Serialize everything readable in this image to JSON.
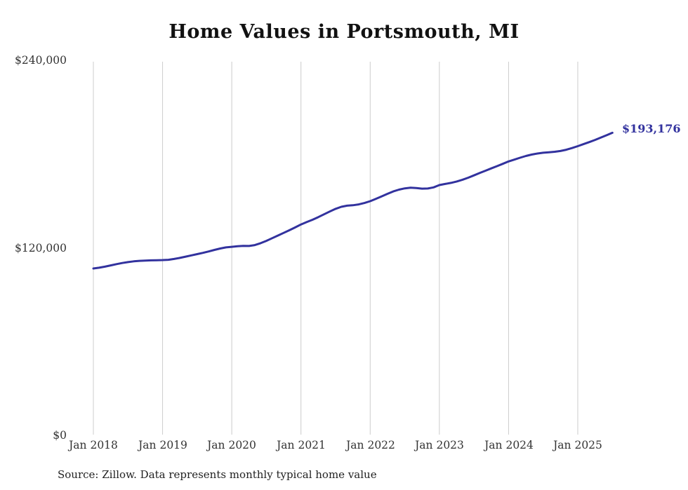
{
  "chart_data": {
    "type": "line",
    "title": "Home Values in Portsmouth, MI",
    "xlabel": "",
    "ylabel": "",
    "ylim": [
      0,
      240000
    ],
    "grid": "vertical-only",
    "y_tick_labels": [
      "$0",
      "$120,000",
      "$240,000"
    ],
    "x_tick_labels": [
      "Jan 2018",
      "Jan 2019",
      "Jan 2020",
      "Jan 2021",
      "Jan 2022",
      "Jan 2023",
      "Jan 2024",
      "Jan 2025"
    ],
    "end_label": "$193,176",
    "end_value": 193176,
    "source": "Source: Zillow. Data represents monthly typical home value",
    "line_color": "#32329e",
    "gridline_color": "#cccccc",
    "series": [
      {
        "name": "Typical home value",
        "start_month": "2018-01",
        "end_month": "2025-07",
        "frequency": "monthly",
        "values": [
          106300,
          106800,
          107500,
          108300,
          109100,
          109800,
          110400,
          110900,
          111200,
          111400,
          111500,
          111600,
          111700,
          111900,
          112400,
          113100,
          113900,
          114700,
          115500,
          116300,
          117200,
          118200,
          119100,
          119800,
          120200,
          120600,
          120800,
          120700,
          121300,
          122500,
          124000,
          125700,
          127400,
          129100,
          130800,
          132600,
          134500,
          136000,
          137500,
          139200,
          141000,
          142800,
          144500,
          145800,
          146500,
          146800,
          147300,
          148200,
          149400,
          150900,
          152500,
          154100,
          155600,
          156800,
          157600,
          158000,
          157800,
          157400,
          157500,
          158200,
          159700,
          160400,
          161100,
          162000,
          163100,
          164400,
          165900,
          167400,
          168900,
          170400,
          171800,
          173300,
          174800,
          176000,
          177200,
          178300,
          179200,
          179900,
          180400,
          180700,
          181000,
          181500,
          182300,
          183400,
          184600,
          185900,
          187200,
          188600,
          190100,
          191600,
          193176
        ]
      }
    ]
  }
}
